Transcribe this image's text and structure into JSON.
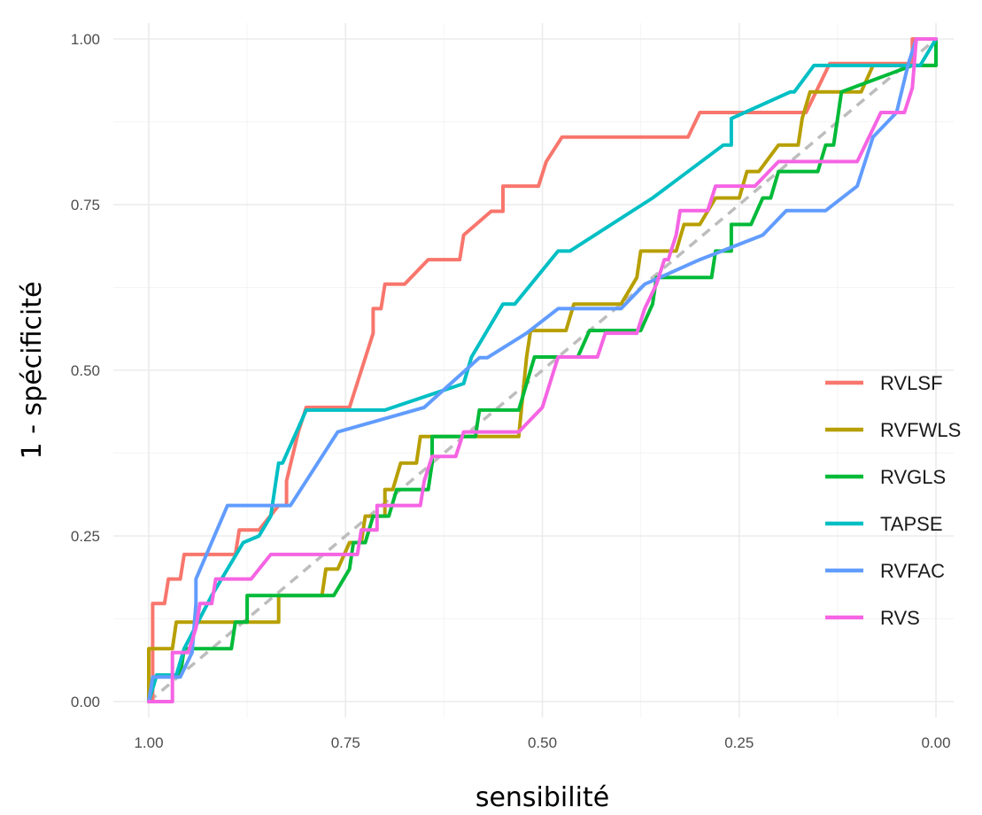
{
  "chart_data": {
    "type": "line",
    "title": "",
    "xlabel": "sensibilité",
    "ylabel": "1 - spécificité",
    "x_reversed": true,
    "xlim": [
      1.0,
      0.0
    ],
    "ylim": [
      0.0,
      1.0
    ],
    "x_ticks": [
      "1.00",
      "0.75",
      "0.50",
      "0.25",
      "0.00"
    ],
    "y_ticks": [
      "0.00",
      "0.25",
      "0.50",
      "0.75",
      "1.00"
    ],
    "grid": true,
    "legend_position": "right",
    "reference_line": {
      "style": "dashed",
      "color": "#bdbdbd",
      "from": [
        1.0,
        0.0
      ],
      "to": [
        0.0,
        1.0
      ]
    },
    "series": [
      {
        "name": "RVLSF",
        "color": "#F8766D",
        "points": [
          [
            1.0,
            0.0
          ],
          [
            0.995,
            0.0
          ],
          [
            0.995,
            0.148
          ],
          [
            0.98,
            0.148
          ],
          [
            0.975,
            0.185
          ],
          [
            0.96,
            0.185
          ],
          [
            0.955,
            0.222
          ],
          [
            0.89,
            0.222
          ],
          [
            0.885,
            0.259
          ],
          [
            0.86,
            0.259
          ],
          [
            0.835,
            0.296
          ],
          [
            0.825,
            0.296
          ],
          [
            0.825,
            0.333
          ],
          [
            0.81,
            0.407
          ],
          [
            0.8,
            0.444
          ],
          [
            0.745,
            0.444
          ],
          [
            0.72,
            0.537
          ],
          [
            0.715,
            0.556
          ],
          [
            0.715,
            0.593
          ],
          [
            0.705,
            0.593
          ],
          [
            0.7,
            0.63
          ],
          [
            0.675,
            0.63
          ],
          [
            0.645,
            0.667
          ],
          [
            0.605,
            0.667
          ],
          [
            0.6,
            0.704
          ],
          [
            0.565,
            0.74
          ],
          [
            0.55,
            0.74
          ],
          [
            0.55,
            0.778
          ],
          [
            0.505,
            0.778
          ],
          [
            0.495,
            0.815
          ],
          [
            0.475,
            0.852
          ],
          [
            0.315,
            0.852
          ],
          [
            0.3,
            0.889
          ],
          [
            0.165,
            0.889
          ],
          [
            0.135,
            0.963
          ],
          [
            0.03,
            0.963
          ],
          [
            0.03,
            1.0
          ],
          [
            0.0,
            1.0
          ]
        ]
      },
      {
        "name": "RVFWLS",
        "color": "#B79F00",
        "points": [
          [
            1.0,
            0.0
          ],
          [
            1.0,
            0.08
          ],
          [
            0.97,
            0.08
          ],
          [
            0.965,
            0.12
          ],
          [
            0.835,
            0.12
          ],
          [
            0.835,
            0.16
          ],
          [
            0.78,
            0.16
          ],
          [
            0.775,
            0.2
          ],
          [
            0.76,
            0.2
          ],
          [
            0.745,
            0.24
          ],
          [
            0.73,
            0.24
          ],
          [
            0.725,
            0.28
          ],
          [
            0.7,
            0.28
          ],
          [
            0.7,
            0.32
          ],
          [
            0.69,
            0.32
          ],
          [
            0.68,
            0.36
          ],
          [
            0.66,
            0.36
          ],
          [
            0.655,
            0.4
          ],
          [
            0.59,
            0.4
          ],
          [
            0.565,
            0.4
          ],
          [
            0.53,
            0.4
          ],
          [
            0.52,
            0.52
          ],
          [
            0.515,
            0.56
          ],
          [
            0.47,
            0.56
          ],
          [
            0.46,
            0.6
          ],
          [
            0.4,
            0.6
          ],
          [
            0.38,
            0.64
          ],
          [
            0.375,
            0.68
          ],
          [
            0.33,
            0.68
          ],
          [
            0.32,
            0.72
          ],
          [
            0.3,
            0.72
          ],
          [
            0.28,
            0.76
          ],
          [
            0.25,
            0.76
          ],
          [
            0.24,
            0.8
          ],
          [
            0.225,
            0.8
          ],
          [
            0.2,
            0.84
          ],
          [
            0.175,
            0.84
          ],
          [
            0.17,
            0.88
          ],
          [
            0.16,
            0.92
          ],
          [
            0.095,
            0.92
          ],
          [
            0.08,
            0.96
          ],
          [
            0.0,
            0.96
          ]
        ]
      },
      {
        "name": "RVGLS",
        "color": "#00BA38",
        "points": [
          [
            1.0,
            0.0
          ],
          [
            0.99,
            0.04
          ],
          [
            0.96,
            0.04
          ],
          [
            0.955,
            0.08
          ],
          [
            0.895,
            0.08
          ],
          [
            0.89,
            0.12
          ],
          [
            0.875,
            0.12
          ],
          [
            0.875,
            0.16
          ],
          [
            0.765,
            0.16
          ],
          [
            0.745,
            0.2
          ],
          [
            0.74,
            0.24
          ],
          [
            0.725,
            0.24
          ],
          [
            0.715,
            0.28
          ],
          [
            0.695,
            0.28
          ],
          [
            0.685,
            0.32
          ],
          [
            0.645,
            0.32
          ],
          [
            0.64,
            0.36
          ],
          [
            0.64,
            0.4
          ],
          [
            0.585,
            0.4
          ],
          [
            0.58,
            0.44
          ],
          [
            0.53,
            0.44
          ],
          [
            0.52,
            0.48
          ],
          [
            0.51,
            0.52
          ],
          [
            0.455,
            0.52
          ],
          [
            0.44,
            0.56
          ],
          [
            0.375,
            0.56
          ],
          [
            0.36,
            0.6
          ],
          [
            0.355,
            0.64
          ],
          [
            0.285,
            0.64
          ],
          [
            0.28,
            0.68
          ],
          [
            0.26,
            0.68
          ],
          [
            0.26,
            0.72
          ],
          [
            0.235,
            0.72
          ],
          [
            0.22,
            0.76
          ],
          [
            0.21,
            0.76
          ],
          [
            0.2,
            0.8
          ],
          [
            0.15,
            0.8
          ],
          [
            0.14,
            0.84
          ],
          [
            0.13,
            0.84
          ],
          [
            0.125,
            0.88
          ],
          [
            0.12,
            0.92
          ],
          [
            0.03,
            0.96
          ],
          [
            0.0,
            0.96
          ],
          [
            0.0,
            1.0
          ]
        ]
      },
      {
        "name": "TAPSE",
        "color": "#00BFC4",
        "points": [
          [
            1.0,
            0.0
          ],
          [
            0.99,
            0.04
          ],
          [
            0.965,
            0.04
          ],
          [
            0.955,
            0.08
          ],
          [
            0.92,
            0.16
          ],
          [
            0.9,
            0.2
          ],
          [
            0.88,
            0.24
          ],
          [
            0.86,
            0.25
          ],
          [
            0.845,
            0.28
          ],
          [
            0.84,
            0.32
          ],
          [
            0.835,
            0.36
          ],
          [
            0.83,
            0.36
          ],
          [
            0.815,
            0.4
          ],
          [
            0.8,
            0.44
          ],
          [
            0.7,
            0.44
          ],
          [
            0.6,
            0.48
          ],
          [
            0.59,
            0.52
          ],
          [
            0.55,
            0.6
          ],
          [
            0.535,
            0.6
          ],
          [
            0.48,
            0.68
          ],
          [
            0.465,
            0.68
          ],
          [
            0.36,
            0.76
          ],
          [
            0.27,
            0.84
          ],
          [
            0.26,
            0.84
          ],
          [
            0.26,
            0.88
          ],
          [
            0.185,
            0.92
          ],
          [
            0.18,
            0.92
          ],
          [
            0.155,
            0.96
          ],
          [
            0.02,
            0.96
          ],
          [
            0.0,
            1.0
          ]
        ]
      },
      {
        "name": "RVFAC",
        "color": "#619CFF",
        "points": [
          [
            1.0,
            0.0
          ],
          [
            0.995,
            0.037
          ],
          [
            0.96,
            0.037
          ],
          [
            0.945,
            0.074
          ],
          [
            0.94,
            0.148
          ],
          [
            0.94,
            0.185
          ],
          [
            0.9,
            0.296
          ],
          [
            0.82,
            0.296
          ],
          [
            0.8,
            0.333
          ],
          [
            0.76,
            0.407
          ],
          [
            0.65,
            0.444
          ],
          [
            0.58,
            0.519
          ],
          [
            0.57,
            0.519
          ],
          [
            0.52,
            0.556
          ],
          [
            0.48,
            0.593
          ],
          [
            0.4,
            0.593
          ],
          [
            0.37,
            0.63
          ],
          [
            0.3,
            0.667
          ],
          [
            0.22,
            0.704
          ],
          [
            0.19,
            0.741
          ],
          [
            0.14,
            0.741
          ],
          [
            0.1,
            0.778
          ],
          [
            0.08,
            0.852
          ],
          [
            0.05,
            0.889
          ],
          [
            0.035,
            0.963
          ],
          [
            0.025,
            1.0
          ],
          [
            0.0,
            1.0
          ]
        ]
      },
      {
        "name": "RVS",
        "color": "#F564E3",
        "points": [
          [
            1.0,
            0.0
          ],
          [
            0.97,
            0.0
          ],
          [
            0.97,
            0.074
          ],
          [
            0.95,
            0.074
          ],
          [
            0.94,
            0.111
          ],
          [
            0.935,
            0.148
          ],
          [
            0.92,
            0.148
          ],
          [
            0.915,
            0.185
          ],
          [
            0.87,
            0.185
          ],
          [
            0.845,
            0.222
          ],
          [
            0.735,
            0.222
          ],
          [
            0.73,
            0.259
          ],
          [
            0.71,
            0.259
          ],
          [
            0.71,
            0.296
          ],
          [
            0.655,
            0.296
          ],
          [
            0.65,
            0.333
          ],
          [
            0.64,
            0.37
          ],
          [
            0.61,
            0.37
          ],
          [
            0.6,
            0.407
          ],
          [
            0.54,
            0.407
          ],
          [
            0.53,
            0.407
          ],
          [
            0.5,
            0.444
          ],
          [
            0.48,
            0.52
          ],
          [
            0.43,
            0.52
          ],
          [
            0.42,
            0.556
          ],
          [
            0.38,
            0.556
          ],
          [
            0.37,
            0.593
          ],
          [
            0.355,
            0.63
          ],
          [
            0.345,
            0.667
          ],
          [
            0.34,
            0.667
          ],
          [
            0.33,
            0.704
          ],
          [
            0.325,
            0.741
          ],
          [
            0.29,
            0.741
          ],
          [
            0.28,
            0.778
          ],
          [
            0.23,
            0.778
          ],
          [
            0.2,
            0.815
          ],
          [
            0.1,
            0.815
          ],
          [
            0.07,
            0.889
          ],
          [
            0.04,
            0.889
          ],
          [
            0.03,
            0.926
          ],
          [
            0.025,
            1.0
          ],
          [
            0.0,
            1.0
          ]
        ]
      }
    ]
  }
}
